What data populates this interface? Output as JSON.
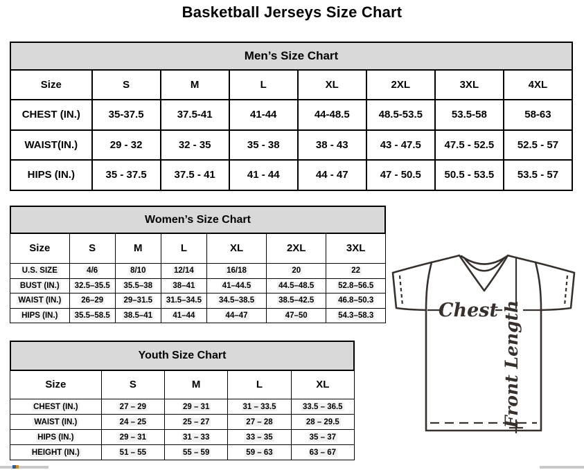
{
  "page_title": "Basketball Jerseys Size Chart",
  "tables": {
    "men": {
      "title": "Men’s Size Chart",
      "columns": [
        "Size",
        "S",
        "M",
        "L",
        "XL",
        "2XL",
        "3XL",
        "4XL"
      ],
      "rows": [
        {
          "label": "CHEST (IN.)",
          "values": [
            "35-37.5",
            "37.5-41",
            "41-44",
            "44-48.5",
            "48.5-53.5",
            "53.5-58",
            "58-63"
          ]
        },
        {
          "label": "WAIST(IN.)",
          "values": [
            "29 - 32",
            "32 - 35",
            "35 - 38",
            "38 - 43",
            "43 - 47.5",
            "47.5 - 52.5",
            "52.5 - 57"
          ]
        },
        {
          "label": "HIPS (IN.)",
          "values": [
            "35 - 37.5",
            "37.5 - 41",
            "41 - 44",
            "44 - 47",
            "47 - 50.5",
            "50.5 - 53.5",
            "53.5 - 57"
          ]
        }
      ]
    },
    "women": {
      "title": "Women’s Size Chart",
      "columns": [
        "Size",
        "S",
        "M",
        "L",
        "XL",
        "2XL",
        "3XL"
      ],
      "rows": [
        {
          "label": "U.S. SIZE",
          "values": [
            "4/6",
            "8/10",
            "12/14",
            "16/18",
            "20",
            "22"
          ]
        },
        {
          "label": "BUST (IN.)",
          "values": [
            "32.5–35.5",
            "35.5–38",
            "38–41",
            "41–44.5",
            "44.5–48.5",
            "52.8–56.5"
          ]
        },
        {
          "label": "WAIST (IN.)",
          "values": [
            "26–29",
            "29–31.5",
            "31.5–34.5",
            "34.5–38.5",
            "38.5–42.5",
            "46.8–50.3"
          ]
        },
        {
          "label": "HIPS (IN.)",
          "values": [
            "35.5–58.5",
            "38.5–41",
            "41–44",
            "44–47",
            "47–50",
            "54.3–58.3"
          ]
        }
      ]
    },
    "youth": {
      "title": "Youth Size Chart",
      "columns": [
        "Size",
        "S",
        "M",
        "L",
        "XL"
      ],
      "rows": [
        {
          "label": "CHEST (IN.)",
          "values": [
            "27 – 29",
            "29 – 31",
            "31 – 33.5",
            "33.5 – 36.5"
          ]
        },
        {
          "label": "WAIST (IN.)",
          "values": [
            "24 – 25",
            "25 – 27",
            "27 – 28",
            "28 – 29.5"
          ]
        },
        {
          "label": "HIPS (IN.)",
          "values": [
            "29 – 31",
            "31 – 33",
            "33 – 35",
            "35 – 37"
          ]
        },
        {
          "label": "HEIGHT (IN.)",
          "values": [
            "51 – 55",
            "55 – 59",
            "59 – 63",
            "63 – 67"
          ]
        }
      ]
    }
  },
  "diagram": {
    "chest_label": "Chest",
    "front_length_label": "Front Length",
    "line_color": "#38302b"
  },
  "colors": {
    "header_band_gray": "#d9d9d9",
    "table_border": "#000000",
    "scrollbar_gray": "#c9c9c9",
    "artifact_dot_colors": [
      "#2b5fa3",
      "#e08a00"
    ]
  }
}
